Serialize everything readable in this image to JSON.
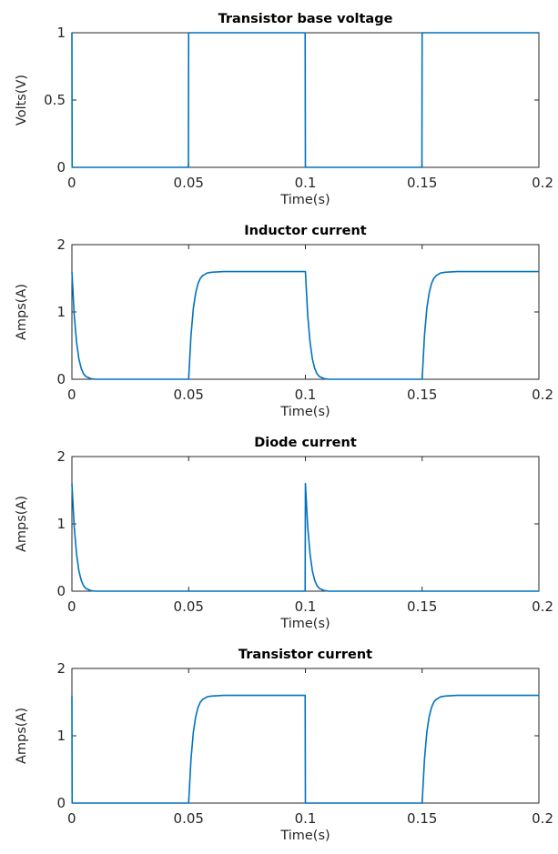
{
  "chart_data": [
    {
      "type": "line",
      "title": "Transistor base voltage",
      "xlabel": "Time(s)",
      "ylabel": "Volts(V)",
      "xlim": [
        0,
        0.2
      ],
      "ylim": [
        0,
        1
      ],
      "xticks": [
        "0",
        "0.05",
        "0.1",
        "0.15",
        "0.2"
      ],
      "yticks": [
        "0",
        "0.5",
        "1"
      ],
      "grid": false,
      "color": "#0072bd",
      "series": [
        {
          "x": [
            0,
            0.0001,
            0.0499,
            0.05,
            0.0999,
            0.1,
            0.1499,
            0.15,
            0.2
          ],
          "y": [
            1,
            0,
            0,
            1,
            1,
            0,
            0,
            1,
            1
          ]
        }
      ]
    },
    {
      "type": "line",
      "title": "Inductor current",
      "xlabel": "Time(s)",
      "ylabel": "Amps(A)",
      "xlim": [
        0,
        0.2
      ],
      "ylim": [
        0,
        2
      ],
      "xticks": [
        "0",
        "0.05",
        "0.1",
        "0.15",
        "0.2"
      ],
      "yticks": [
        "0",
        "1",
        "2"
      ],
      "grid": false,
      "color": "#0072bd",
      "series": [
        {
          "x": [
            0,
            0.001,
            0.002,
            0.003,
            0.004,
            0.005,
            0.006,
            0.008,
            0.01,
            0.05,
            0.051,
            0.052,
            0.053,
            0.054,
            0.055,
            0.056,
            0.058,
            0.06,
            0.065,
            0.07,
            0.1,
            0.101,
            0.102,
            0.103,
            0.104,
            0.105,
            0.106,
            0.108,
            0.11,
            0.15,
            0.151,
            0.152,
            0.153,
            0.154,
            0.155,
            0.156,
            0.158,
            0.16,
            0.165,
            0.17,
            0.2
          ],
          "y": [
            1.6,
            0.95,
            0.55,
            0.3,
            0.16,
            0.08,
            0.04,
            0.01,
            0,
            0,
            0.65,
            1.05,
            1.28,
            1.42,
            1.5,
            1.54,
            1.58,
            1.59,
            1.6,
            1.6,
            1.6,
            0.95,
            0.55,
            0.3,
            0.16,
            0.08,
            0.04,
            0.01,
            0,
            0,
            0.65,
            1.05,
            1.28,
            1.42,
            1.5,
            1.54,
            1.58,
            1.59,
            1.6,
            1.6,
            1.6
          ]
        }
      ]
    },
    {
      "type": "line",
      "title": "Diode current",
      "xlabel": "Time(s)",
      "ylabel": "Amps(A)",
      "xlim": [
        0,
        0.2
      ],
      "ylim": [
        0,
        2
      ],
      "xticks": [
        "0",
        "0.05",
        "0.1",
        "0.15",
        "0.2"
      ],
      "yticks": [
        "0",
        "1",
        "2"
      ],
      "grid": false,
      "color": "#0072bd",
      "series": [
        {
          "x": [
            0,
            0.001,
            0.002,
            0.003,
            0.004,
            0.005,
            0.006,
            0.008,
            0.01,
            0.0999,
            0.1,
            0.101,
            0.102,
            0.103,
            0.104,
            0.105,
            0.106,
            0.108,
            0.11,
            0.2
          ],
          "y": [
            1.6,
            0.95,
            0.55,
            0.3,
            0.16,
            0.08,
            0.04,
            0.01,
            0,
            0,
            1.6,
            0.95,
            0.55,
            0.3,
            0.16,
            0.08,
            0.04,
            0.01,
            0,
            0
          ]
        }
      ]
    },
    {
      "type": "line",
      "title": "Transistor current",
      "xlabel": "Time(s)",
      "ylabel": "Amps(A)",
      "xlim": [
        0,
        0.2
      ],
      "ylim": [
        0,
        2
      ],
      "xticks": [
        "0",
        "0.05",
        "0.1",
        "0.15",
        "0.2"
      ],
      "yticks": [
        "0",
        "1",
        "2"
      ],
      "grid": false,
      "color": "#0072bd",
      "series": [
        {
          "x": [
            0,
            0.0001,
            0.05,
            0.051,
            0.052,
            0.053,
            0.054,
            0.055,
            0.056,
            0.058,
            0.06,
            0.065,
            0.0999,
            0.1,
            0.15,
            0.151,
            0.152,
            0.153,
            0.154,
            0.155,
            0.156,
            0.158,
            0.16,
            0.165,
            0.2
          ],
          "y": [
            1.6,
            0,
            0,
            0.65,
            1.05,
            1.28,
            1.42,
            1.5,
            1.54,
            1.58,
            1.59,
            1.6,
            1.6,
            0,
            0,
            0.65,
            1.05,
            1.28,
            1.42,
            1.5,
            1.54,
            1.58,
            1.59,
            1.6,
            1.6
          ]
        }
      ]
    }
  ]
}
